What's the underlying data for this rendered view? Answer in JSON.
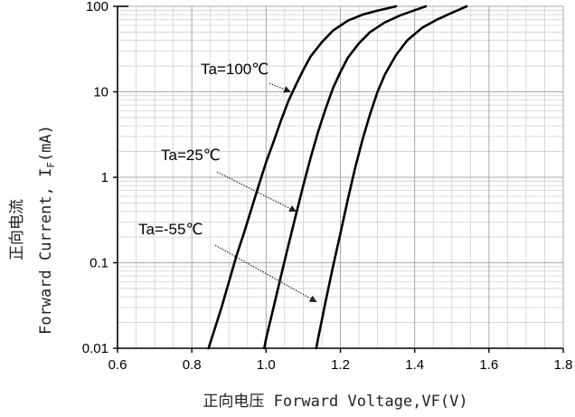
{
  "chart_data": {
    "type": "line",
    "title": "",
    "xlabel": "正向电压 Forward Voltage,VF(V)",
    "ylabel_line1": "正向电流",
    "ylabel_line2_prefix": "Forward Current, I",
    "ylabel_line2_sub": "F",
    "ylabel_line2_suffix": "(mA)",
    "xlim": [
      0.6,
      1.8
    ],
    "ylim": [
      0.01,
      100
    ],
    "y_scale": "log",
    "x_ticks": [
      "0.6",
      "0.8",
      "1.0",
      "1.2",
      "1.4",
      "1.6",
      "1.8"
    ],
    "y_ticks": [
      "0.01",
      "0.1",
      "1",
      "10",
      "100"
    ],
    "grid": true,
    "series": [
      {
        "name": "Ta=100℃",
        "label_at": [
          1.065,
          10
        ],
        "points": [
          [
            0.845,
            0.01
          ],
          [
            0.86,
            0.016
          ],
          [
            0.88,
            0.03
          ],
          [
            0.9,
            0.06
          ],
          [
            0.92,
            0.12
          ],
          [
            0.94,
            0.22
          ],
          [
            0.96,
            0.42
          ],
          [
            0.98,
            0.8
          ],
          [
            1.0,
            1.5
          ],
          [
            1.02,
            2.6
          ],
          [
            1.04,
            4.6
          ],
          [
            1.06,
            7.8
          ],
          [
            1.08,
            12
          ],
          [
            1.1,
            18
          ],
          [
            1.12,
            26
          ],
          [
            1.15,
            38
          ],
          [
            1.18,
            52
          ],
          [
            1.22,
            68
          ],
          [
            1.26,
            80
          ],
          [
            1.3,
            89
          ],
          [
            1.35,
            100
          ]
        ]
      },
      {
        "name": "Ta=25℃",
        "label_at": [
          1.08,
          0.4
        ],
        "points": [
          [
            0.995,
            0.01
          ],
          [
            1.0,
            0.013
          ],
          [
            1.02,
            0.03
          ],
          [
            1.04,
            0.07
          ],
          [
            1.06,
            0.16
          ],
          [
            1.08,
            0.36
          ],
          [
            1.1,
            0.8
          ],
          [
            1.12,
            1.7
          ],
          [
            1.14,
            3.4
          ],
          [
            1.16,
            6.3
          ],
          [
            1.18,
            11
          ],
          [
            1.2,
            17
          ],
          [
            1.22,
            25
          ],
          [
            1.25,
            37
          ],
          [
            1.28,
            50
          ],
          [
            1.32,
            65
          ],
          [
            1.36,
            78
          ],
          [
            1.4,
            90
          ],
          [
            1.43,
            100
          ]
        ]
      },
      {
        "name": "Ta=-55℃",
        "label_at": [
          1.135,
          0.035
        ],
        "points": [
          [
            1.135,
            0.01
          ],
          [
            1.14,
            0.013
          ],
          [
            1.16,
            0.035
          ],
          [
            1.18,
            0.09
          ],
          [
            1.2,
            0.22
          ],
          [
            1.22,
            0.55
          ],
          [
            1.24,
            1.3
          ],
          [
            1.26,
            2.8
          ],
          [
            1.28,
            5.5
          ],
          [
            1.3,
            10
          ],
          [
            1.32,
            16
          ],
          [
            1.35,
            27
          ],
          [
            1.38,
            40
          ],
          [
            1.42,
            56
          ],
          [
            1.46,
            70
          ],
          [
            1.5,
            84
          ],
          [
            1.54,
            100
          ]
        ]
      }
    ]
  }
}
